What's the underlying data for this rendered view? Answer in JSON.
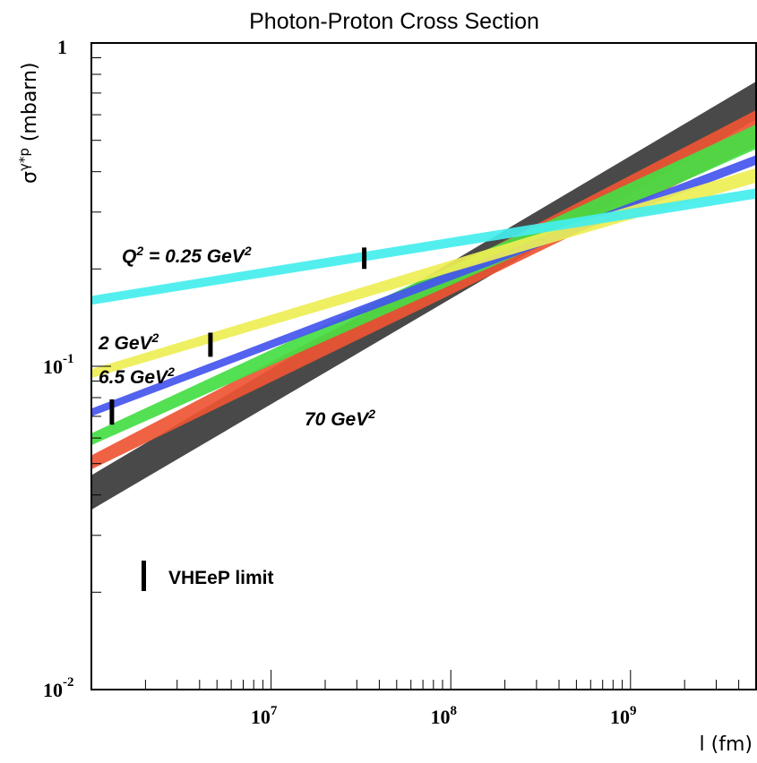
{
  "chart_data": {
    "type": "area",
    "title": "Photon-Proton Cross Section",
    "xlabel": "l (fm)",
    "ylabel": "σ^γ*p (mbarn)",
    "x_scale": "log",
    "y_scale": "log",
    "xlim": [
      1000000,
      5000000000
    ],
    "ylim": [
      0.01,
      1
    ],
    "x_ticks": [
      {
        "value": 10000000,
        "base": "10",
        "exp": "7"
      },
      {
        "value": 100000000,
        "base": "10",
        "exp": "8"
      },
      {
        "value": 1000000000,
        "base": "10",
        "exp": "9"
      }
    ],
    "y_ticks": [
      {
        "value": 1,
        "base": "1",
        "exp": ""
      },
      {
        "value": 0.1,
        "base": "10",
        "exp": "-1"
      },
      {
        "value": 0.01,
        "base": "10",
        "exp": "-2"
      }
    ],
    "series": [
      {
        "name": "70 GeV²",
        "label_text": "70 GeV",
        "label_sup": "2",
        "color": "#3a3a3a",
        "x": [
          1000000,
          5000000000
        ],
        "y_low": [
          0.036,
          0.58
        ],
        "y_high": [
          0.046,
          0.76
        ]
      },
      {
        "name": "",
        "color": "#ee5533",
        "x": [
          1000000,
          5000000000
        ],
        "y_low": [
          0.048,
          0.48
        ],
        "y_high": [
          0.053,
          0.62
        ]
      },
      {
        "name": "6.5 GeV²",
        "label_text": "6.5 GeV",
        "label_sup": "2",
        "color": "#44dd44",
        "x": [
          1000000,
          5000000000
        ],
        "y_low": [
          0.057,
          0.47
        ],
        "y_high": [
          0.062,
          0.56
        ]
      },
      {
        "name": "2 GeV²",
        "label_text": "2 GeV",
        "label_sup": "2",
        "color": "#4455ee",
        "x": [
          1000000,
          5000000000
        ],
        "y_low": [
          0.07,
          0.42
        ],
        "y_high": [
          0.074,
          0.45
        ]
      },
      {
        "name": "",
        "color": "#eeee55",
        "x": [
          1000000,
          5000000000
        ],
        "y_low": [
          0.092,
          0.37
        ],
        "y_high": [
          0.098,
          0.41
        ]
      },
      {
        "name": "Q² = 0.25 GeV²",
        "label_text": "Q",
        "label_sup": "2",
        "label_rest": " = 0.25 GeV",
        "label_sup2": "2",
        "color": "#44eeee",
        "x": [
          1000000,
          5000000000
        ],
        "y_low": [
          0.155,
          0.33
        ],
        "y_high": [
          0.165,
          0.355
        ]
      }
    ],
    "limits": [
      {
        "x": 1300000,
        "y_low": 0.066,
        "y_high": 0.079
      },
      {
        "x": 4600000,
        "y_low": 0.107,
        "y_high": 0.127
      },
      {
        "x": 33000000,
        "y_low": 0.2,
        "y_high": 0.233
      }
    ],
    "legend": {
      "text": "VHEeP limit",
      "placement": "bottom-left"
    }
  }
}
